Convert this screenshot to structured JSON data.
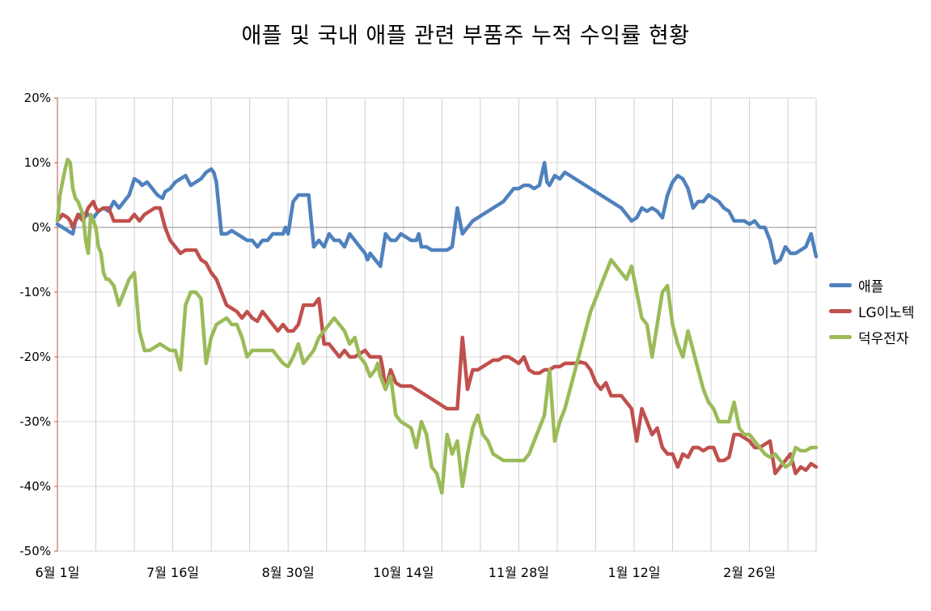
{
  "chart_data": {
    "type": "line",
    "title": "애플 및 국내 애플 관련 부품주 누적 수익률 현황",
    "ylim": [
      -50,
      20
    ],
    "y_ticks": [
      "20%",
      "10%",
      "0%",
      "-10%",
      "-20%",
      "-30%",
      "-40%",
      "-50%"
    ],
    "y_tick_values": [
      20,
      10,
      0,
      -10,
      -20,
      -30,
      -40,
      -50
    ],
    "x_tick_labels": [
      "6월 1일",
      "7월 16일",
      "8월 30일",
      "10월 14일",
      "11월 28일",
      "1월 12일",
      "2월 26일"
    ],
    "x_tick_values": [
      0,
      45,
      90,
      135,
      180,
      225,
      270
    ],
    "x_max": 296,
    "grid": true,
    "legend_position": "right",
    "series": [
      {
        "name": "애플",
        "color": "#4F81BD",
        "x": [
          0,
          2,
          4,
          6,
          7,
          9,
          10,
          12,
          14,
          16,
          18,
          20,
          22,
          24,
          26,
          28,
          30,
          32,
          33,
          35,
          37,
          39,
          41,
          42,
          44,
          46,
          48,
          50,
          52,
          54,
          56,
          58,
          60,
          61,
          62,
          64,
          66,
          68,
          70,
          72,
          74,
          76,
          78,
          80,
          82,
          84,
          86,
          88,
          89,
          90,
          92,
          94,
          96,
          98,
          100,
          102,
          104,
          106,
          108,
          110,
          112,
          114,
          116,
          118,
          120,
          121,
          122,
          124,
          126,
          128,
          130,
          132,
          134,
          136,
          138,
          140,
          141,
          142,
          144,
          146,
          148,
          150,
          152,
          154,
          156,
          158,
          160,
          162,
          164,
          166,
          168,
          170,
          172,
          174,
          176,
          178,
          180,
          182,
          184,
          186,
          188,
          190,
          191,
          192,
          194,
          196,
          198,
          200,
          202,
          204,
          206,
          208,
          210,
          212,
          214,
          216,
          218,
          220,
          222,
          224,
          226,
          228,
          230,
          232,
          234,
          236,
          238,
          240,
          242,
          244,
          246,
          248,
          250,
          252,
          254,
          256,
          258,
          260,
          262,
          264,
          266,
          268,
          270,
          272,
          274,
          276,
          278,
          280,
          282,
          284,
          286,
          288,
          290,
          292,
          294,
          296
        ],
        "values": [
          0.5,
          0,
          -0.5,
          -1,
          1,
          2,
          1.5,
          2,
          1.5,
          2.5,
          3,
          2.5,
          4,
          3,
          4,
          5,
          7.5,
          7,
          6.5,
          7,
          6,
          5,
          4.5,
          5.5,
          6,
          7,
          7.5,
          8,
          6.5,
          7,
          7.5,
          8.5,
          9,
          8.5,
          7,
          -1,
          -1,
          -0.5,
          -1,
          -1.5,
          -2,
          -2,
          -3,
          -2,
          -2,
          -1,
          -1,
          -1,
          0,
          -1,
          4,
          5,
          5,
          5,
          -3,
          -2,
          -3,
          -1,
          -2,
          -2,
          -3,
          -1,
          -2,
          -3,
          -4,
          -5,
          -4,
          -5,
          -6,
          -1,
          -2,
          -2,
          -1,
          -1.5,
          -2,
          -2,
          -1,
          -3,
          -3,
          -3.5,
          -3.5,
          -3.5,
          -3.5,
          -3,
          3,
          -1,
          0,
          1,
          1.5,
          2,
          2.5,
          3,
          3.5,
          4,
          5,
          6,
          6,
          6.5,
          6.5,
          6,
          6.5,
          10,
          7,
          6.5,
          8,
          7.5,
          8.5,
          8,
          7.5,
          7,
          6.5,
          6,
          5.5,
          5,
          4.5,
          4,
          3.5,
          3,
          2,
          1,
          1.5,
          3,
          2.5,
          3,
          2.5,
          1.5,
          5,
          7,
          8,
          7.5,
          6,
          3,
          4,
          4,
          5,
          4.5,
          4,
          3,
          2.5,
          1,
          1,
          1,
          0.5,
          1,
          0,
          0,
          -2,
          -5.5,
          -5,
          -3,
          -4,
          -4,
          -3.5,
          -3,
          -1,
          -4.5
        ]
      },
      {
        "name": "LG이노텍",
        "color": "#C0504D",
        "x": [
          0,
          2,
          4,
          5,
          6,
          8,
          10,
          12,
          14,
          15,
          16,
          18,
          20,
          22,
          24,
          26,
          28,
          30,
          32,
          34,
          36,
          38,
          40,
          42,
          44,
          46,
          48,
          50,
          52,
          54,
          56,
          58,
          60,
          62,
          64,
          66,
          68,
          70,
          72,
          74,
          76,
          78,
          80,
          82,
          84,
          86,
          88,
          90,
          92,
          94,
          96,
          98,
          100,
          102,
          104,
          106,
          108,
          110,
          112,
          114,
          116,
          118,
          120,
          122,
          124,
          126,
          127,
          128,
          130,
          132,
          134,
          136,
          138,
          140,
          142,
          144,
          146,
          148,
          150,
          152,
          154,
          156,
          158,
          160,
          162,
          164,
          166,
          168,
          170,
          172,
          174,
          176,
          178,
          180,
          182,
          184,
          186,
          188,
          190,
          192,
          194,
          196,
          198,
          200,
          202,
          204,
          206,
          208,
          210,
          212,
          214,
          216,
          218,
          220,
          222,
          224,
          226,
          228,
          230,
          232,
          234,
          236,
          238,
          240,
          242,
          244,
          246,
          248,
          250,
          252,
          254,
          256,
          258,
          260,
          262,
          264,
          266,
          268,
          270,
          272,
          274,
          276,
          278,
          280,
          282,
          284,
          286,
          288,
          290,
          292,
          294,
          296
        ],
        "values": [
          1,
          2,
          1.5,
          1,
          0,
          2,
          1,
          3,
          4,
          3,
          2.5,
          3,
          3,
          1,
          1,
          1,
          1,
          2,
          1,
          2,
          2.5,
          3,
          3,
          0,
          -2,
          -3,
          -4,
          -3.5,
          -3.5,
          -3.5,
          -5,
          -5.5,
          -7,
          -8,
          -10,
          -12,
          -12.5,
          -13,
          -14,
          -13,
          -14,
          -14.5,
          -13,
          -14,
          -15,
          -16,
          -15,
          -16,
          -16,
          -15,
          -12,
          -12,
          -12,
          -11,
          -18,
          -18,
          -19,
          -20,
          -19,
          -20,
          -20,
          -19.5,
          -19,
          -20,
          -20,
          -20,
          -22,
          -25,
          -22,
          -24,
          -24.5,
          -24.5,
          -24.5,
          -25,
          -25.5,
          -26,
          -26.5,
          -27,
          -27.5,
          -28,
          -28,
          -28,
          -17,
          -25,
          -22,
          -22,
          -21.5,
          -21,
          -20.5,
          -20.5,
          -20,
          -20,
          -20.5,
          -21,
          -20,
          -22,
          -22.5,
          -22.5,
          -22,
          -22,
          -21.5,
          -21.5,
          -21,
          -21,
          -21,
          -20.8,
          -21,
          -22,
          -24,
          -25,
          -24,
          -26,
          -26,
          -26,
          -27,
          -28,
          -33,
          -28,
          -30,
          -32,
          -31,
          -34,
          -35,
          -35,
          -37,
          -35,
          -35.5,
          -34,
          -34,
          -34.5,
          -34,
          -34,
          -36,
          -36,
          -35.5,
          -32,
          -32,
          -32.5,
          -33,
          -34,
          -34,
          -33.5,
          -33,
          -38,
          -37,
          -36,
          -35,
          -38,
          -37,
          -37.5,
          -36.5,
          -37
        ]
      },
      {
        "name": "덕우전자",
        "color": "#9BBB59",
        "x": [
          0,
          1,
          2,
          3,
          4,
          5,
          6,
          7,
          8,
          9,
          10,
          11,
          12,
          13,
          14,
          15,
          16,
          17,
          18,
          19,
          20,
          22,
          24,
          26,
          28,
          30,
          32,
          34,
          36,
          38,
          40,
          42,
          44,
          46,
          48,
          50,
          52,
          54,
          56,
          58,
          60,
          62,
          64,
          66,
          68,
          70,
          72,
          74,
          76,
          78,
          80,
          82,
          84,
          86,
          88,
          90,
          92,
          94,
          96,
          98,
          100,
          102,
          104,
          106,
          108,
          110,
          112,
          114,
          116,
          118,
          120,
          121,
          122,
          124,
          125,
          126,
          128,
          130,
          132,
          134,
          136,
          138,
          140,
          142,
          144,
          146,
          148,
          150,
          152,
          154,
          156,
          158,
          160,
          162,
          164,
          166,
          168,
          170,
          172,
          174,
          176,
          178,
          180,
          182,
          184,
          186,
          188,
          190,
          192,
          194,
          196,
          198,
          200,
          202,
          204,
          206,
          208,
          210,
          212,
          214,
          216,
          218,
          220,
          222,
          224,
          226,
          228,
          230,
          232,
          234,
          236,
          238,
          240,
          242,
          244,
          246,
          248,
          250,
          252,
          254,
          256,
          258,
          260,
          262,
          264,
          266,
          268,
          270,
          272,
          274,
          276,
          278,
          280,
          282,
          284,
          286,
          288,
          290,
          292,
          294,
          296
        ],
        "values": [
          1,
          5,
          7,
          9,
          10.5,
          10,
          6,
          4.5,
          4,
          3,
          2,
          -2,
          -4,
          2,
          1,
          0,
          -3,
          -4,
          -7,
          -8,
          -8,
          -9,
          -12,
          -10,
          -8,
          -7,
          -16,
          -19,
          -19,
          -18.5,
          -18,
          -18.5,
          -19,
          -19,
          -22,
          -12,
          -10,
          -10,
          -11,
          -21,
          -17,
          -15,
          -14.5,
          -14,
          -15,
          -15,
          -17,
          -20,
          -19,
          -19,
          -19,
          -19,
          -19,
          -20,
          -21,
          -21.5,
          -20,
          -18,
          -21,
          -20,
          -19,
          -17,
          -16,
          -15,
          -14,
          -15,
          -16,
          -18,
          -17,
          -20,
          -21,
          -22,
          -23,
          -22,
          -21,
          -23,
          -25,
          -23,
          -29,
          -30,
          -30.5,
          -31,
          -34,
          -30,
          -32,
          -37,
          -38,
          -41,
          -32,
          -35,
          -33,
          -40,
          -35,
          -31,
          -29,
          -32,
          -33,
          -35,
          -35.5,
          -36,
          -36,
          -36,
          -36,
          -36,
          -35,
          -33,
          -31,
          -29,
          -22,
          -33,
          -30,
          -28,
          -25,
          -22,
          -19,
          -16,
          -13,
          -11,
          -9,
          -7,
          -5,
          -6,
          -7,
          -8,
          -6,
          -10,
          -14,
          -15,
          -20,
          -15,
          -10,
          -9,
          -15,
          -18,
          -20,
          -16,
          -19,
          -22,
          -25,
          -27,
          -28,
          -30,
          -30,
          -30,
          -27,
          -31,
          -32,
          -32,
          -33,
          -34,
          -35,
          -35.5,
          -35,
          -36,
          -37,
          -36.5,
          -34,
          -34.5,
          -34.5,
          -34,
          -34
        ]
      }
    ]
  }
}
